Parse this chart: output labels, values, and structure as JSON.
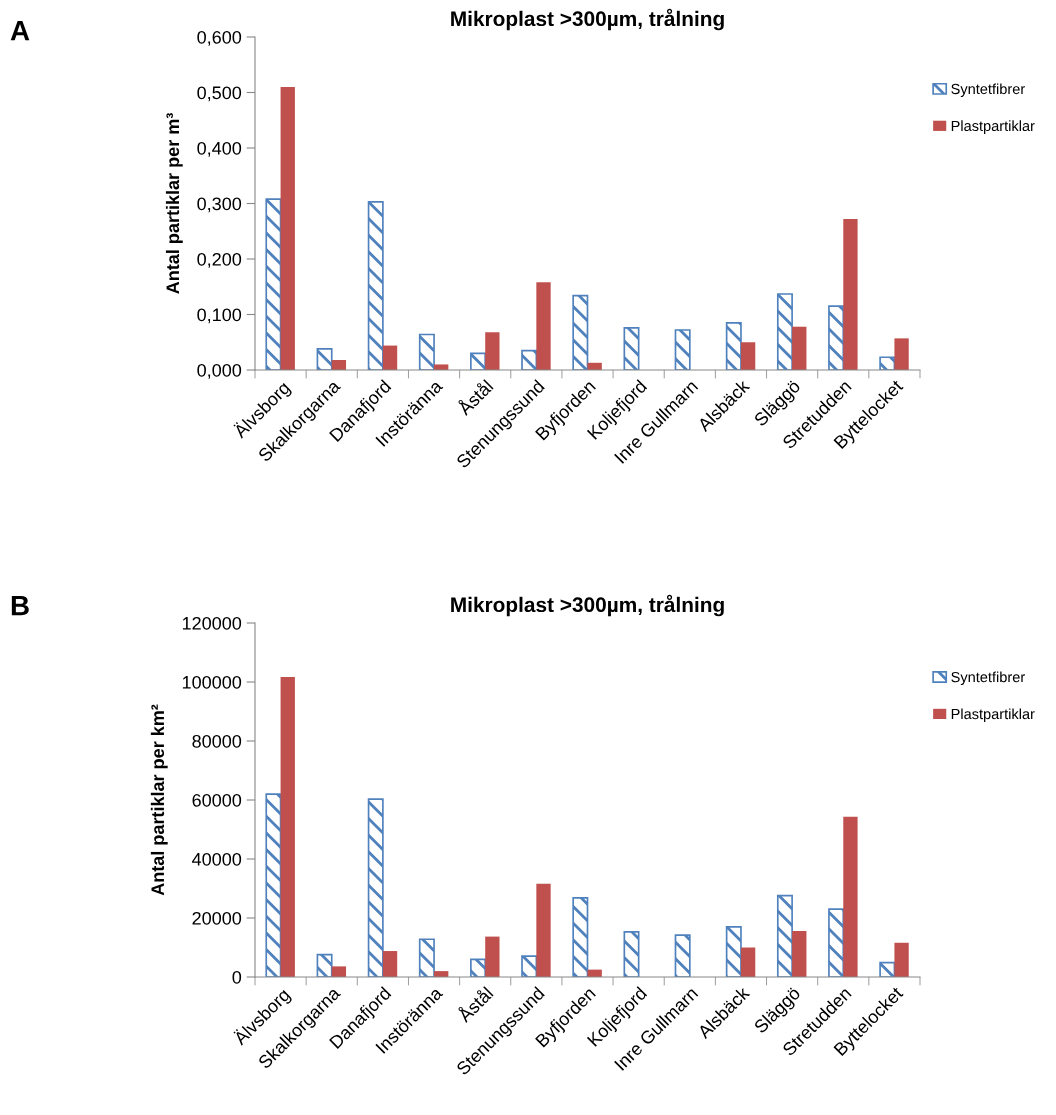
{
  "chart_data": [
    {
      "type": "bar",
      "title": "Mikroplast >300µm, trålning",
      "ylabel": "Antal partiklar per m³",
      "annotations": [
        "A"
      ],
      "categories": [
        "Älvsborg",
        "Skalkorgarna",
        "Danafjord",
        "Instöränna",
        "Åstål",
        "Stenungssund",
        "Byfjorden",
        "Koljefjord",
        "Inre Gullmarn",
        "Alsbäck",
        "Släggö",
        "Stretudden",
        "Byttelocket"
      ],
      "series": [
        {
          "name": "Syntetfibrer",
          "color": "#4f81bd",
          "values": [
            0.308,
            0.038,
            0.303,
            0.064,
            0.03,
            0.035,
            0.134,
            0.076,
            0.072,
            0.085,
            0.137,
            0.115,
            0.023
          ]
        },
        {
          "name": "Plastpartiklar",
          "color": "#c0504d",
          "values": [
            0.51,
            0.018,
            0.044,
            0.01,
            0.068,
            0.158,
            0.013,
            0,
            0,
            0.05,
            0.078,
            0.272,
            0.057
          ]
        }
      ],
      "ylim": [
        0,
        0.6
      ],
      "yticks": [
        {
          "value": 0,
          "label": "0,000"
        },
        {
          "value": 0.1,
          "label": "0,100"
        },
        {
          "value": 0.2,
          "label": "0,200"
        },
        {
          "value": 0.3,
          "label": "0,300"
        },
        {
          "value": 0.4,
          "label": "0,400"
        },
        {
          "value": 0.5,
          "label": "0,500"
        },
        {
          "value": 0.6,
          "label": "0,600"
        }
      ],
      "grid": false,
      "legend": "top right"
    },
    {
      "type": "bar",
      "title": "Mikroplast >300µm, trålning",
      "ylabel": "Antal partiklar per km²",
      "annotations": [
        "B"
      ],
      "categories": [
        "Älvsborg",
        "Skalkorgarna",
        "Danafjord",
        "Instöränna",
        "Åstål",
        "Stenungssund",
        "Byfjorden",
        "Koljefjord",
        "Inre Gullmarn",
        "Alsbäck",
        "Släggö",
        "Stretudden",
        "Byttelocket"
      ],
      "series": [
        {
          "name": "Syntetfibrer",
          "color": "#4f81bd",
          "values": [
            62000,
            7600,
            60300,
            12800,
            6000,
            7100,
            26800,
            15300,
            14200,
            17000,
            27600,
            23000,
            4900
          ]
        },
        {
          "name": "Plastpartiklar",
          "color": "#c0504d",
          "values": [
            101700,
            3600,
            8800,
            2000,
            13700,
            31600,
            2500,
            0,
            0,
            10000,
            15600,
            54300,
            11600
          ]
        }
      ],
      "ylim": [
        0,
        120000
      ],
      "yticks": [
        0,
        20000,
        40000,
        60000,
        80000,
        100000,
        120000
      ],
      "grid": false,
      "legend": "top right"
    }
  ]
}
